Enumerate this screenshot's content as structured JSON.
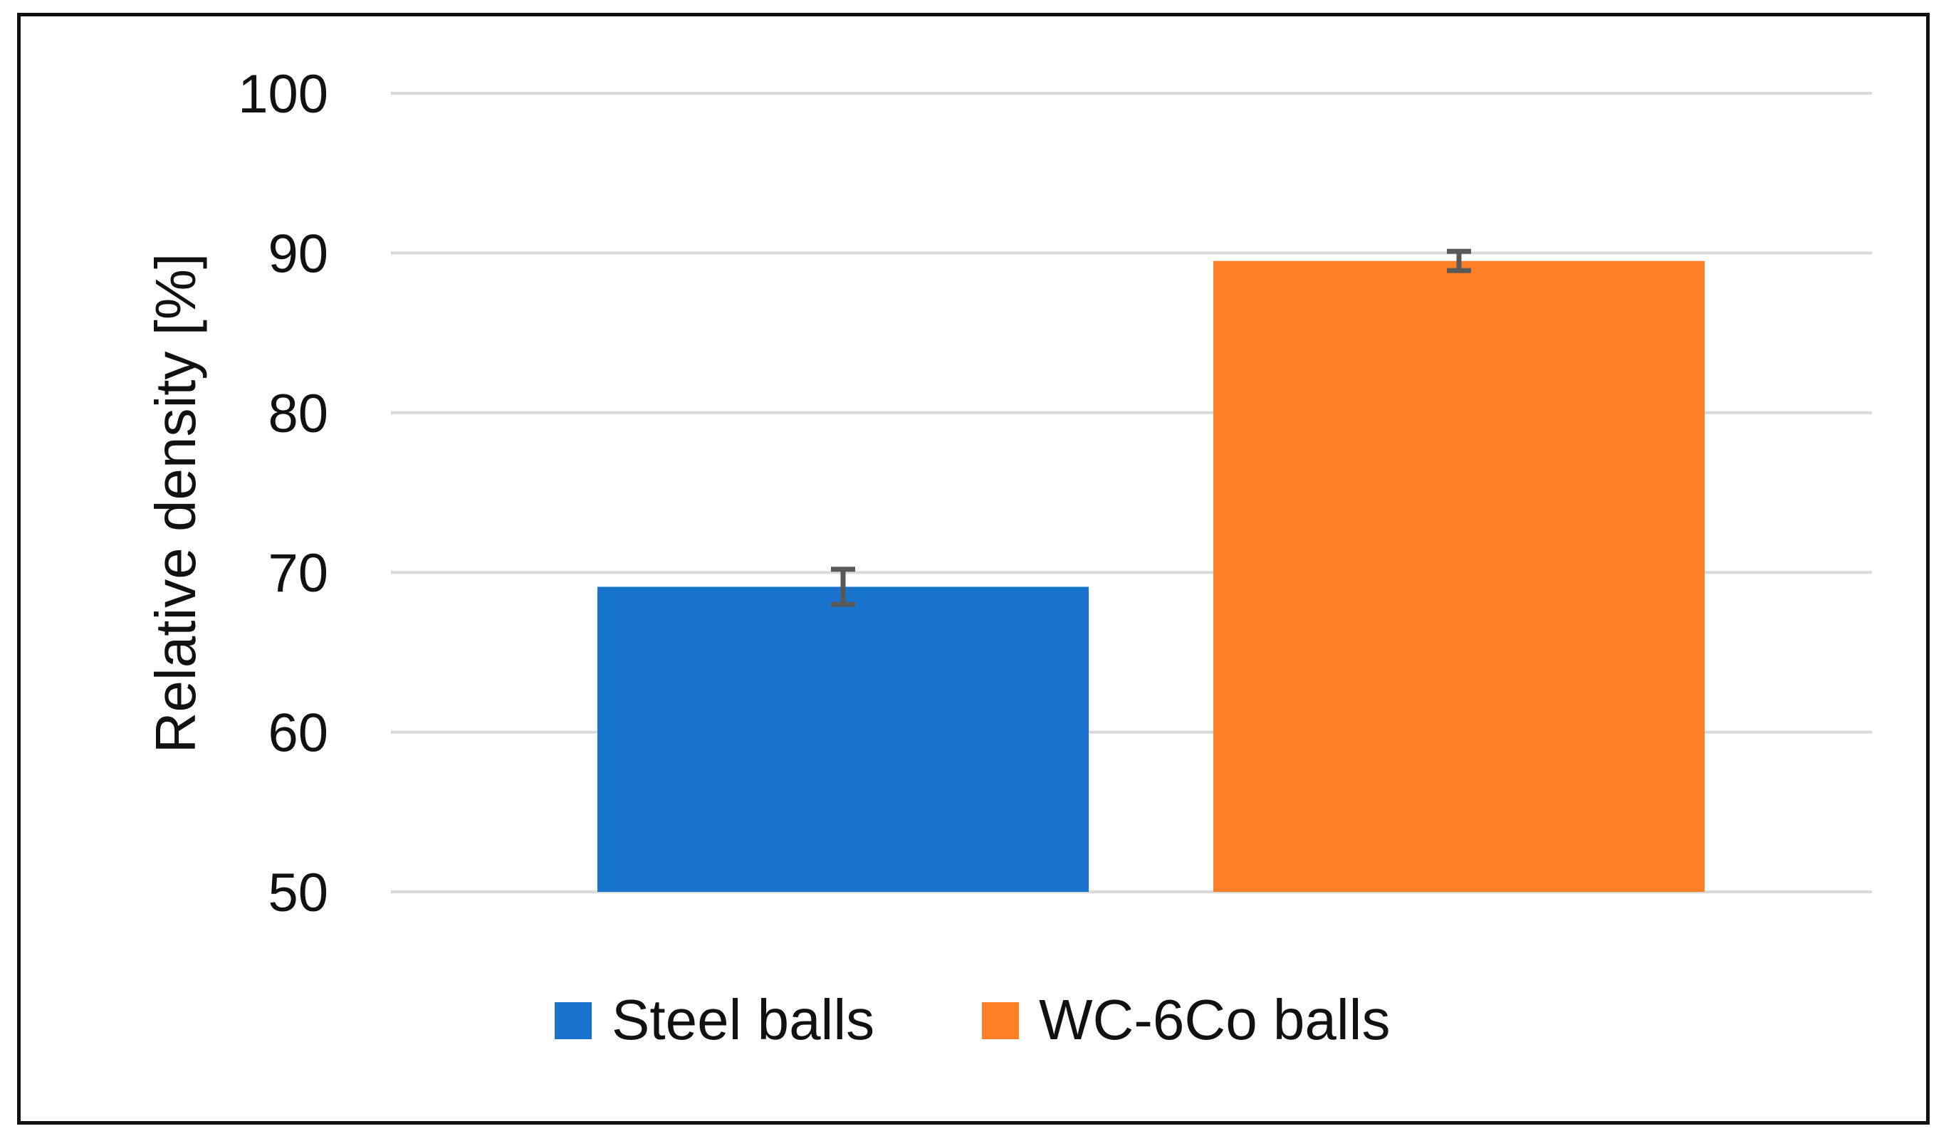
{
  "chart_data": {
    "type": "bar",
    "title": "",
    "xlabel": "",
    "ylabel": "Relative density [%]",
    "ylim": [
      50,
      100
    ],
    "yticks": [
      50,
      60,
      70,
      80,
      90,
      100
    ],
    "grid": true,
    "legend_position": "bottom-center",
    "categories": [
      "Steel balls",
      "WC-6Co balls"
    ],
    "series": [
      {
        "name": "Steel balls",
        "color": "#1874CD",
        "value": 69.1,
        "error": 1.1
      },
      {
        "name": "WC-6Co balls",
        "color": "#FF7F27",
        "value": 89.5,
        "error": 0.6
      }
    ]
  }
}
